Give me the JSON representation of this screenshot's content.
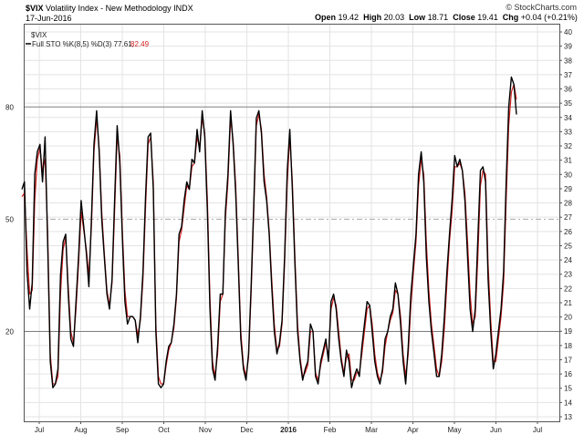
{
  "header": {
    "symbol": "$VIX",
    "name": "Volatility Index - New Methodology",
    "exchange": "INDX",
    "date": "17-Jun-2016",
    "credit": "© StockCharts.com",
    "open_label": "Open",
    "open": "19.42",
    "high_label": "High",
    "high": "20.03",
    "low_label": "Low",
    "low": "18.71",
    "close_label": "Close",
    "close": "19.41",
    "chg_label": "Chg",
    "chg": "+0.04 (+0.21%)",
    "legend_title": "$VIX",
    "legend_k_text": "Full STO %K(8,5) %D(3) 77.61,",
    "legend_d_text": "82.49"
  },
  "colors": {
    "k_line": "#000000",
    "d_line": "#d42020",
    "grid": "#e3e3e3",
    "level_line": "#808080",
    "mid_line": "#aaaaaa"
  },
  "chart_data": {
    "type": "line",
    "left_axis_ticks": [
      20,
      50,
      80
    ],
    "left_axis_range": [
      -4,
      102
    ],
    "right_axis_ticks": [
      13,
      14,
      15,
      16,
      17,
      18,
      19,
      20,
      21,
      22,
      23,
      24,
      25,
      26,
      27,
      28,
      29,
      30,
      31,
      32,
      33,
      34,
      35,
      36,
      37,
      38,
      39,
      40
    ],
    "x_tick_labels": [
      "Jul",
      "Aug",
      "Sep",
      "Oct",
      "Nov",
      "Dec",
      "2016",
      "Feb",
      "Mar",
      "Apr",
      "May",
      "Jun",
      "Jul"
    ],
    "x": [
      0,
      2,
      4,
      6,
      8,
      10,
      12,
      14,
      16,
      18,
      20,
      22,
      24,
      26,
      28,
      30,
      32,
      34,
      36,
      38,
      40,
      42,
      44,
      46,
      48,
      50,
      52,
      54,
      56,
      58,
      60,
      62,
      64,
      66,
      68,
      70,
      72,
      74,
      76,
      78,
      80,
      82,
      84,
      86,
      88,
      90,
      92,
      94,
      96,
      98,
      100,
      102,
      104,
      106,
      108,
      110,
      112,
      114,
      116,
      118,
      120,
      122,
      124,
      126,
      128,
      130,
      132,
      134,
      136,
      138,
      140,
      142,
      144,
      146,
      148,
      150,
      152,
      154,
      156,
      158,
      160,
      162,
      164,
      166,
      168,
      170,
      172,
      174,
      176,
      178,
      180,
      182,
      184,
      186,
      188,
      190,
      192,
      194,
      196,
      198,
      200,
      202,
      204,
      206,
      208,
      210,
      212,
      214,
      216,
      218,
      220,
      222,
      224,
      226,
      228,
      230,
      232,
      234,
      236,
      238,
      240,
      242,
      244,
      246,
      248,
      250,
      252
    ],
    "series": [
      {
        "name": "%K",
        "values": [
          58,
          60,
          36,
          26,
          33,
          62,
          68,
          70,
          60,
          72,
          44,
          12,
          5,
          6,
          10,
          35,
          44,
          46,
          30,
          18,
          16,
          28,
          40,
          55,
          48,
          41,
          32,
          50,
          70,
          79,
          68,
          50,
          40,
          30,
          26,
          34,
          55,
          75,
          65,
          45,
          28,
          22,
          24,
          24,
          23,
          17,
          24,
          36,
          56,
          72,
          73,
          58,
          20,
          6,
          5,
          6,
          12,
          16,
          17,
          22,
          30,
          46,
          48,
          55,
          60,
          58,
          66,
          65,
          74,
          68,
          79,
          72,
          52,
          26,
          10,
          7,
          16,
          30,
          30,
          52,
          62,
          79,
          70,
          57,
          38,
          18,
          10,
          7,
          14,
          32,
          54,
          77,
          79,
          73,
          60,
          55,
          46,
          32,
          20,
          14,
          17,
          23,
          40,
          63,
          74,
          58,
          38,
          20,
          12,
          7,
          10,
          12,
          22,
          20,
          8,
          6,
          12,
          15,
          18,
          12,
          28,
          30,
          26,
          18,
          12,
          8,
          15
        ]
      },
      {
        "name": "%D",
        "values": [
          56,
          57,
          42,
          30,
          31,
          55,
          66,
          69,
          63,
          66,
          47,
          14,
          6,
          6,
          8,
          30,
          42,
          45,
          32,
          20,
          17,
          26,
          38,
          52,
          47,
          42,
          35,
          48,
          68,
          77,
          69,
          52,
          41,
          31,
          27,
          33,
          52,
          72,
          67,
          47,
          31,
          24,
          24,
          24,
          23,
          19,
          23,
          34,
          53,
          70,
          72,
          60,
          22,
          8,
          6,
          6,
          11,
          15,
          17,
          21,
          29,
          44,
          47,
          53,
          59,
          58,
          64,
          65,
          72,
          69,
          77,
          73,
          55,
          29,
          12,
          8,
          14,
          28,
          30,
          50,
          60,
          77,
          71,
          59,
          40,
          20,
          11,
          8,
          13,
          30,
          52,
          75,
          78,
          74,
          62,
          56,
          47,
          34,
          22,
          15,
          16,
          22,
          38,
          60,
          72,
          60,
          40,
          22,
          13,
          8,
          9,
          11,
          20,
          20,
          9,
          7,
          11,
          14,
          17,
          13,
          26,
          29,
          27,
          20,
          13,
          9,
          13
        ]
      }
    ],
    "series_note": "series continues in second segment",
    "series2": [
      {
        "name": "%K",
        "values": [
          12,
          5,
          8,
          10,
          8,
          16,
          22,
          28,
          27,
          20,
          12,
          8,
          6,
          10,
          18,
          20,
          24,
          26,
          33,
          30,
          22,
          12,
          6,
          16,
          30,
          38,
          46,
          62,
          68,
          60,
          40,
          28,
          20,
          14,
          8,
          8,
          14,
          24,
          36,
          46,
          55,
          67,
          64,
          66,
          63,
          55,
          40,
          26,
          20,
          26,
          45,
          63,
          64,
          60,
          34,
          20,
          10,
          14,
          20,
          26,
          36,
          60,
          80,
          88,
          86,
          78
        ]
      },
      {
        "name": "%D",
        "values": [
          14,
          7,
          7,
          9,
          9,
          14,
          20,
          26,
          27,
          22,
          14,
          9,
          7,
          9,
          16,
          20,
          23,
          25,
          31,
          30,
          24,
          14,
          8,
          14,
          27,
          36,
          44,
          59,
          66,
          62,
          44,
          31,
          22,
          16,
          10,
          8,
          12,
          21,
          33,
          44,
          52,
          64,
          64,
          65,
          63,
          57,
          44,
          30,
          22,
          24,
          40,
          59,
          63,
          62,
          38,
          23,
          12,
          12,
          18,
          24,
          33,
          55,
          75,
          84,
          86,
          82
        ]
      }
    ]
  }
}
